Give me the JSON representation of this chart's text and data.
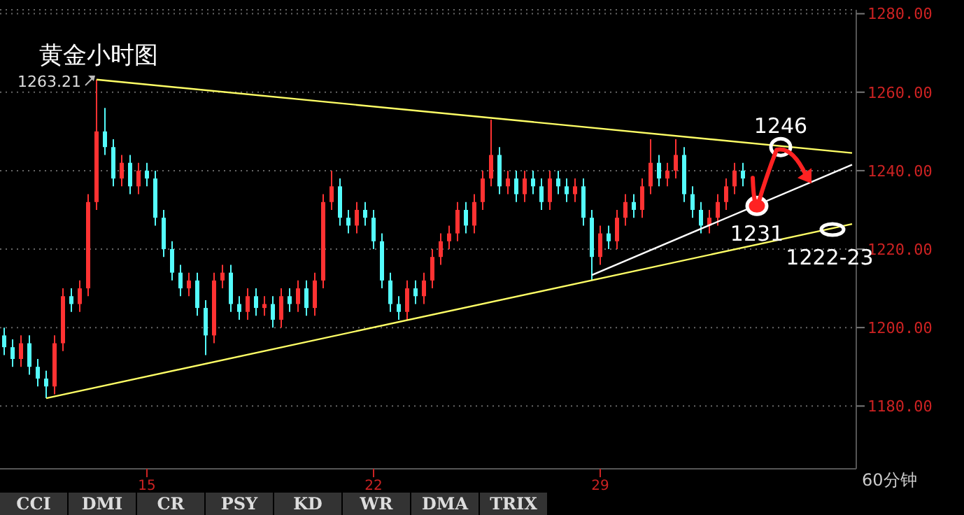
{
  "chart_data": {
    "type": "candlestick",
    "title": "黄金小时图",
    "categories": [
      null,
      null,
      null,
      null,
      null,
      null,
      null,
      null,
      null,
      null,
      null,
      null,
      null,
      null,
      null,
      null,
      null,
      "15",
      null,
      null,
      null,
      null,
      null,
      null,
      null,
      null,
      null,
      null,
      null,
      null,
      null,
      null,
      null,
      null,
      null,
      null,
      null,
      null,
      null,
      null,
      null,
      null,
      null,
      null,
      "22",
      null,
      null,
      null,
      null,
      null,
      null,
      null,
      null,
      null,
      null,
      null,
      null,
      null,
      null,
      null,
      null,
      null,
      null,
      null,
      null,
      null,
      null,
      null,
      null,
      null,
      null,
      "29",
      null,
      null,
      null,
      null,
      null,
      null,
      null,
      null,
      null,
      null,
      null,
      null,
      null,
      null,
      null,
      null,
      null,
      null,
      null,
      null,
      null,
      null,
      null,
      null,
      null,
      null,
      null,
      null,
      null,
      null
    ],
    "ohlc": [
      [
        1198,
        1200,
        1193,
        1195
      ],
      [
        1195,
        1197,
        1190,
        1192
      ],
      [
        1192,
        1198,
        1190,
        1196
      ],
      [
        1196,
        1198,
        1188,
        1190
      ],
      [
        1190,
        1192,
        1185,
        1187
      ],
      [
        1187,
        1189,
        1182,
        1185
      ],
      [
        1185,
        1198,
        1183,
        1196
      ],
      [
        1196,
        1210,
        1194,
        1208
      ],
      [
        1208,
        1210,
        1204,
        1206
      ],
      [
        1206,
        1212,
        1204,
        1210
      ],
      [
        1210,
        1234,
        1208,
        1232
      ],
      [
        1232,
        1263.21,
        1230,
        1250
      ],
      [
        1250,
        1256,
        1244,
        1246
      ],
      [
        1246,
        1248,
        1236,
        1238
      ],
      [
        1238,
        1244,
        1236,
        1242
      ],
      [
        1242,
        1244,
        1234,
        1236
      ],
      [
        1236,
        1242,
        1234,
        1240
      ],
      [
        1240,
        1242,
        1236,
        1238
      ],
      [
        1238,
        1240,
        1226,
        1228
      ],
      [
        1228,
        1230,
        1218,
        1220
      ],
      [
        1220,
        1222,
        1212,
        1214
      ],
      [
        1214,
        1216,
        1208,
        1210
      ],
      [
        1210,
        1214,
        1208,
        1212
      ],
      [
        1212,
        1214,
        1203,
        1205
      ],
      [
        1205,
        1207,
        1193,
        1198
      ],
      [
        1198,
        1214,
        1196,
        1212
      ],
      [
        1212,
        1216,
        1210,
        1214
      ],
      [
        1214,
        1216,
        1204,
        1206
      ],
      [
        1206,
        1208,
        1202,
        1204
      ],
      [
        1204,
        1210,
        1202,
        1208
      ],
      [
        1208,
        1210,
        1203,
        1205
      ],
      [
        1205,
        1208,
        1203,
        1206
      ],
      [
        1206,
        1208,
        1200,
        1202
      ],
      [
        1202,
        1210,
        1200,
        1208
      ],
      [
        1208,
        1210,
        1204,
        1206
      ],
      [
        1206,
        1212,
        1204,
        1210
      ],
      [
        1210,
        1212,
        1203,
        1205
      ],
      [
        1205,
        1214,
        1203,
        1212
      ],
      [
        1212,
        1234,
        1210,
        1232
      ],
      [
        1232,
        1240,
        1230,
        1236
      ],
      [
        1236,
        1238,
        1226,
        1228
      ],
      [
        1228,
        1230,
        1224,
        1226
      ],
      [
        1226,
        1232,
        1224,
        1230
      ],
      [
        1230,
        1232,
        1226,
        1228
      ],
      [
        1228,
        1230,
        1220,
        1222
      ],
      [
        1222,
        1224,
        1210,
        1212
      ],
      [
        1212,
        1214,
        1204,
        1206
      ],
      [
        1206,
        1208,
        1202,
        1204
      ],
      [
        1204,
        1212,
        1202,
        1210
      ],
      [
        1210,
        1212,
        1206,
        1208
      ],
      [
        1208,
        1214,
        1206,
        1212
      ],
      [
        1212,
        1220,
        1210,
        1218
      ],
      [
        1218,
        1224,
        1216,
        1222
      ],
      [
        1222,
        1226,
        1220,
        1224
      ],
      [
        1224,
        1232,
        1222,
        1230
      ],
      [
        1230,
        1232,
        1224,
        1226
      ],
      [
        1226,
        1234,
        1224,
        1232
      ],
      [
        1232,
        1240,
        1230,
        1238
      ],
      [
        1238,
        1253,
        1236,
        1244
      ],
      [
        1244,
        1246,
        1234,
        1236
      ],
      [
        1236,
        1240,
        1234,
        1238
      ],
      [
        1238,
        1240,
        1232,
        1234
      ],
      [
        1234,
        1240,
        1232,
        1238
      ],
      [
        1238,
        1240,
        1234,
        1236
      ],
      [
        1236,
        1238,
        1230,
        1232
      ],
      [
        1232,
        1240,
        1230,
        1238
      ],
      [
        1238,
        1240,
        1234,
        1236
      ],
      [
        1236,
        1238,
        1232,
        1234
      ],
      [
        1234,
        1238,
        1232,
        1236
      ],
      [
        1236,
        1238,
        1226,
        1228
      ],
      [
        1228,
        1230,
        1212,
        1218
      ],
      [
        1218,
        1226,
        1216,
        1224
      ],
      [
        1224,
        1226,
        1220,
        1222
      ],
      [
        1222,
        1230,
        1220,
        1228
      ],
      [
        1228,
        1234,
        1226,
        1232
      ],
      [
        1232,
        1234,
        1228,
        1230
      ],
      [
        1230,
        1238,
        1228,
        1236
      ],
      [
        1236,
        1248,
        1234,
        1242
      ],
      [
        1242,
        1244,
        1236,
        1238
      ],
      [
        1238,
        1242,
        1236,
        1240
      ],
      [
        1240,
        1248,
        1238,
        1244
      ],
      [
        1244,
        1246,
        1232,
        1234
      ],
      [
        1234,
        1236,
        1228,
        1230
      ],
      [
        1230,
        1232,
        1224,
        1226
      ],
      [
        1226,
        1230,
        1224,
        1228
      ],
      [
        1228,
        1234,
        1226,
        1232
      ],
      [
        1232,
        1238,
        1230,
        1236
      ],
      [
        1236,
        1242,
        1234,
        1240
      ],
      [
        1240,
        1242,
        1236,
        1238
      ],
      null,
      null,
      null,
      null,
      null,
      null,
      null,
      null,
      null,
      null,
      null,
      null,
      null
    ],
    "colors": [
      "#54fcfc",
      "#54fcfc",
      "#ff3232",
      "#54fcfc",
      "#54fcfc",
      "#54fcfc",
      "#ff3232",
      "#ff3232",
      "#54fcfc",
      "#ff3232",
      "#ff3232",
      "#ff3232",
      "#54fcfc",
      "#54fcfc",
      "#ff3232",
      "#54fcfc",
      "#ff3232",
      "#54fcfc",
      "#54fcfc",
      "#54fcfc",
      "#54fcfc",
      "#54fcfc",
      "#ff3232",
      "#54fcfc",
      "#54fcfc",
      "#ff3232",
      "#ff3232",
      "#54fcfc",
      "#54fcfc",
      "#ff3232",
      "#54fcfc",
      "#ff3232",
      "#54fcfc",
      "#ff3232",
      "#54fcfc",
      "#ff3232",
      "#54fcfc",
      "#ff3232",
      "#ff3232",
      "#ff3232",
      "#54fcfc",
      "#54fcfc",
      "#ff3232",
      "#54fcfc",
      "#54fcfc",
      "#54fcfc",
      "#54fcfc",
      "#54fcfc",
      "#ff3232",
      "#54fcfc",
      "#ff3232",
      "#ff3232",
      "#ff3232",
      "#ff3232",
      "#ff3232",
      "#54fcfc",
      "#ff3232",
      "#ff3232",
      "#ff3232",
      "#54fcfc",
      "#ff3232",
      "#54fcfc",
      "#ff3232",
      "#54fcfc",
      "#54fcfc",
      "#ff3232",
      "#54fcfc",
      "#54fcfc",
      "#ff3232",
      "#54fcfc",
      "#54fcfc",
      "#ff3232",
      "#54fcfc",
      "#ff3232",
      "#ff3232",
      "#54fcfc",
      "#ff3232",
      "#ff3232",
      "#54fcfc",
      "#ff3232",
      "#ff3232",
      "#54fcfc",
      "#54fcfc",
      "#54fcfc",
      "#ff3232",
      "#ff3232",
      "#ff3232",
      "#ff3232",
      "#54fcfc",
      null,
      null,
      null,
      null,
      null,
      null,
      null,
      null,
      null,
      null,
      null,
      null,
      null
    ],
    "series": [
      {
        "type": "line",
        "color": "#ffff66",
        "values": [
          null,
          null,
          null,
          null,
          null,
          null,
          null,
          null,
          null,
          null,
          null,
          1263.21,
          null,
          null,
          null,
          null,
          null,
          null,
          null,
          null,
          null,
          null,
          null,
          null,
          null,
          null,
          null,
          null,
          null,
          null,
          null,
          null,
          null,
          null,
          null,
          null,
          null,
          null,
          null,
          null,
          null,
          null,
          null,
          null,
          null,
          null,
          null,
          null,
          null,
          null,
          null,
          null,
          null,
          null,
          null,
          null,
          null,
          null,
          null,
          null,
          null,
          null,
          null,
          null,
          null,
          null,
          null,
          null,
          null,
          null,
          null,
          null,
          null,
          null,
          null,
          null,
          null,
          null,
          null,
          null,
          null,
          null,
          null,
          null,
          null,
          null,
          null,
          null,
          null,
          null,
          null,
          null,
          null,
          null,
          null,
          null,
          null,
          null,
          null,
          null,
          null,
          1244.5
        ]
      },
      {
        "type": "line",
        "color": "#ffff66",
        "values": [
          null,
          null,
          null,
          null,
          null,
          1182,
          null,
          null,
          null,
          null,
          null,
          null,
          null,
          null,
          null,
          null,
          null,
          null,
          null,
          null,
          null,
          null,
          null,
          null,
          null,
          null,
          null,
          null,
          null,
          null,
          null,
          null,
          null,
          null,
          null,
          null,
          null,
          null,
          null,
          null,
          null,
          null,
          null,
          null,
          null,
          null,
          null,
          null,
          null,
          null,
          null,
          null,
          null,
          null,
          null,
          null,
          null,
          null,
          null,
          null,
          null,
          null,
          null,
          null,
          null,
          null,
          null,
          null,
          null,
          null,
          null,
          null,
          null,
          null,
          null,
          null,
          null,
          null,
          null,
          null,
          null,
          null,
          null,
          null,
          null,
          null,
          null,
          null,
          null,
          null,
          null,
          null,
          null,
          null,
          null,
          null,
          null,
          null,
          null,
          null,
          null,
          1226.4
        ]
      },
      {
        "type": "line",
        "color": "#ffffff",
        "values": [
          null,
          null,
          null,
          null,
          null,
          null,
          null,
          null,
          null,
          null,
          null,
          null,
          null,
          null,
          null,
          null,
          null,
          null,
          null,
          null,
          null,
          null,
          null,
          null,
          null,
          null,
          null,
          null,
          null,
          null,
          null,
          null,
          null,
          null,
          null,
          null,
          null,
          null,
          null,
          null,
          null,
          null,
          null,
          null,
          null,
          null,
          null,
          null,
          null,
          null,
          null,
          null,
          null,
          null,
          null,
          null,
          null,
          null,
          null,
          null,
          null,
          null,
          null,
          null,
          null,
          null,
          null,
          null,
          null,
          null,
          1213.4,
          null,
          null,
          null,
          null,
          null,
          null,
          null,
          null,
          null,
          null,
          null,
          null,
          null,
          null,
          null,
          null,
          null,
          null,
          null,
          null,
          null,
          null,
          null,
          null,
          null,
          null,
          null,
          null,
          null,
          null,
          1241.5
        ]
      }
    ],
    "ylim": [
      1164,
      1281
    ],
    "yticks": [
      {
        "value": 1180,
        "label": "1180.00"
      },
      {
        "value": 1200,
        "label": "1200.00"
      },
      {
        "value": 1220,
        "label": "1220.00"
      },
      {
        "value": 1240,
        "label": "1240.00"
      },
      {
        "value": 1260,
        "label": "1260.00"
      },
      {
        "value": 1280,
        "label": "1280.00"
      }
    ],
    "grid": "y",
    "annotations": [
      "1263.21",
      {
        "text": "1246",
        "y": 1246
      },
      {
        "text": "1231",
        "y": 1231
      },
      {
        "text": "1222-23",
        "y": 1225
      },
      "60分钟",
      "CCI",
      "DMI",
      "CR",
      "PSY",
      "KD",
      "WR",
      "DMA",
      "TRIX"
    ]
  }
}
